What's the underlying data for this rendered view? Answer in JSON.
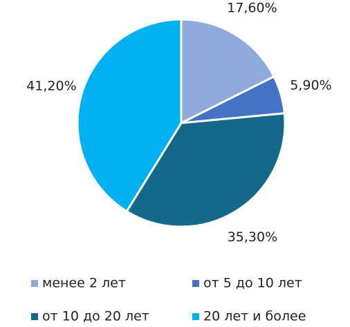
{
  "chart_data": {
    "type": "pie",
    "categories": [
      "менее 2 лет",
      "от 5 до 10 лет",
      "от 10 до 20 лет",
      "20 лет и более"
    ],
    "values": [
      17.6,
      5.9,
      35.3,
      41.2
    ],
    "value_labels": [
      "17,60%",
      "5,90%",
      "35,30%",
      "41,20%"
    ],
    "colors": [
      "#8eaadb",
      "#4472c4",
      "#14698a",
      "#00b0f0"
    ],
    "legend": "bottom"
  }
}
